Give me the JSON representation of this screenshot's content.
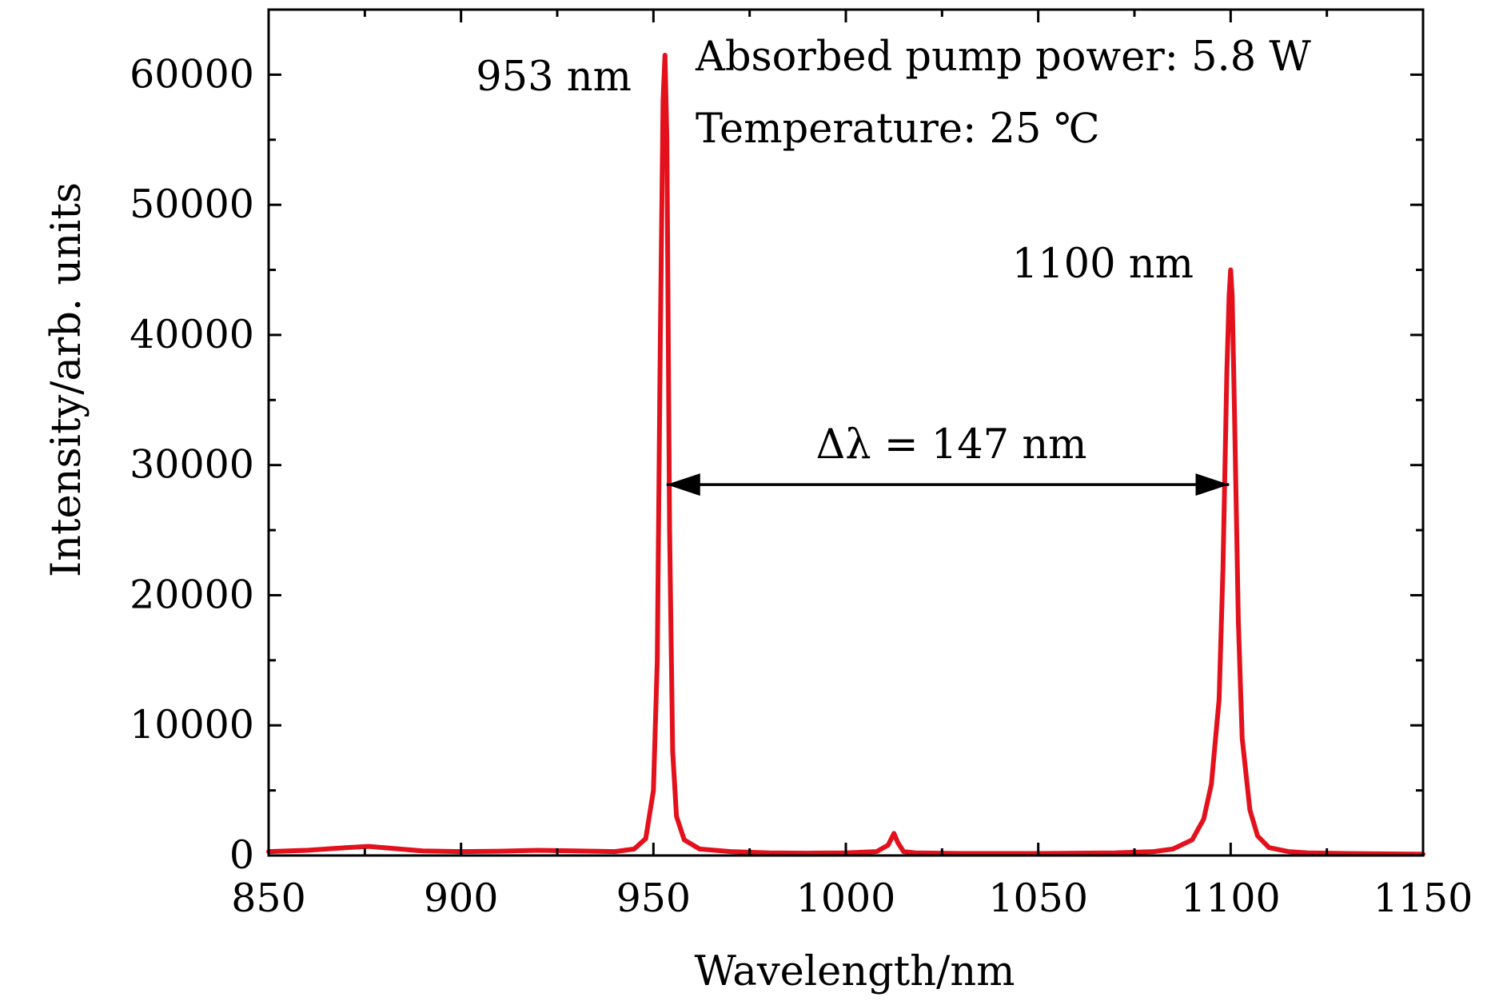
{
  "chart_data": {
    "type": "line",
    "title": "",
    "xlabel": "Wavelength/nm",
    "ylabel": "Intensity/arb. units",
    "xlim": [
      850,
      1150
    ],
    "ylim": [
      0,
      65000
    ],
    "xticks": [
      850,
      900,
      950,
      1000,
      1050,
      1100,
      1150
    ],
    "yticks": [
      0,
      10000,
      20000,
      30000,
      40000,
      50000,
      60000
    ],
    "xtick_labels": [
      "850",
      "900",
      "950",
      "1000",
      "1050",
      "1100",
      "1150"
    ],
    "ytick_labels": [
      "0",
      "10000",
      "20000",
      "30000",
      "40000",
      "50000",
      "60000"
    ],
    "grid": false,
    "line_color": "#e3111c",
    "series": [
      {
        "x": [
          850,
          860,
          870,
          876,
          880,
          890,
          900,
          910,
          920,
          930,
          940,
          945,
          948,
          950,
          951,
          951.8,
          952.5,
          953,
          953.5,
          954.2,
          955,
          956,
          958,
          962,
          970,
          980,
          990,
          1000,
          1008,
          1011,
          1012.5,
          1013.5,
          1015,
          1018,
          1030,
          1050,
          1070,
          1080,
          1085,
          1090,
          1093,
          1095,
          1097,
          1098,
          1099,
          1099.6,
          1100,
          1100.4,
          1101,
          1102,
          1103,
          1105,
          1107,
          1110,
          1115,
          1120,
          1130,
          1150
        ],
        "y": [
          300,
          400,
          600,
          700,
          600,
          350,
          300,
          330,
          400,
          350,
          300,
          500,
          1300,
          5000,
          15000,
          40000,
          58000,
          61500,
          55000,
          25000,
          8000,
          3000,
          1200,
          500,
          300,
          200,
          180,
          200,
          300,
          800,
          1700,
          1000,
          300,
          200,
          150,
          150,
          200,
          300,
          500,
          1200,
          2800,
          5500,
          12000,
          22000,
          37000,
          43000,
          45000,
          43000,
          34000,
          18000,
          9000,
          3500,
          1500,
          600,
          300,
          200,
          150,
          100
        ]
      }
    ],
    "annotations": [
      {
        "text": "953 nm"
      },
      {
        "text": "1100 nm"
      },
      {
        "text": "Absorbed pump power: 5.8 W"
      },
      {
        "text": "Temperature: 25 ℃"
      },
      {
        "text": "Δλ = 147 nm",
        "x_start": 953,
        "x_end": 1100,
        "y": 28500
      }
    ]
  }
}
